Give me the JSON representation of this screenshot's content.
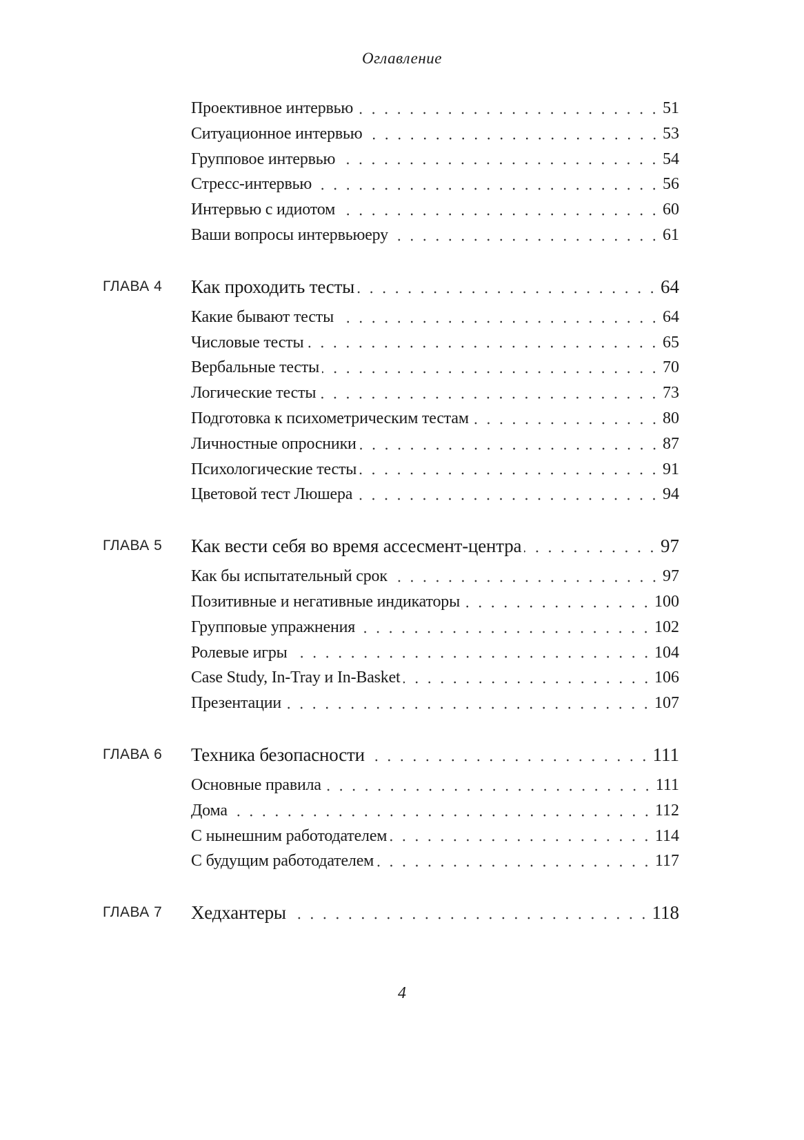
{
  "header": {
    "title": "Оглавление"
  },
  "sections": [
    {
      "chapter_label": "",
      "chapter_title": "",
      "chapter_page": "",
      "items": [
        {
          "title": "Проективное интервью",
          "page": "51"
        },
        {
          "title": "Ситуационное интервью",
          "page": "53"
        },
        {
          "title": "Групповое интервью",
          "page": "54"
        },
        {
          "title": "Стресс-интервью",
          "page": "56"
        },
        {
          "title": "Интервью с идиотом",
          "page": "60"
        },
        {
          "title": "Ваши вопросы интервьюеру",
          "page": "61"
        }
      ]
    },
    {
      "chapter_label": "ГЛАВА 4",
      "chapter_title": "Как проходить тесты",
      "chapter_page": "64",
      "items": [
        {
          "title": "Какие бывают тесты",
          "page": "64"
        },
        {
          "title": "Числовые тесты",
          "page": "65"
        },
        {
          "title": "Вербальные тесты",
          "page": "70"
        },
        {
          "title": "Логические тесты",
          "page": "73"
        },
        {
          "title": "Подготовка к психометрическим тестам",
          "page": "80"
        },
        {
          "title": "Личностные опросники",
          "page": "87"
        },
        {
          "title": "Психологические тесты",
          "page": "91"
        },
        {
          "title": "Цветовой тест Люшера",
          "page": "94"
        }
      ]
    },
    {
      "chapter_label": "ГЛАВА 5",
      "chapter_title": "Как вести себя во время ассесмент-центра",
      "chapter_page": "97",
      "items": [
        {
          "title": "Как бы испытательный срок",
          "page": "97"
        },
        {
          "title": "Позитивные и негативные индикаторы",
          "page": "100"
        },
        {
          "title": "Групповые упражнения",
          "page": "102"
        },
        {
          "title": "Ролевые игры",
          "page": "104"
        },
        {
          "title": "Case Study, In-Tray и In-Basket",
          "page": "106"
        },
        {
          "title": "Презентации",
          "page": "107"
        }
      ]
    },
    {
      "chapter_label": "ГЛАВА 6",
      "chapter_title": "Техника безопасности",
      "chapter_page": "111",
      "items": [
        {
          "title": "Основные правила",
          "page": "111"
        },
        {
          "title": "Дома",
          "page": "112"
        },
        {
          "title": "С нынешним работодателем",
          "page": "114"
        },
        {
          "title": "С будущим работодателем",
          "page": "117"
        }
      ]
    },
    {
      "chapter_label": "ГЛАВА 7",
      "chapter_title": "Хедхантеры",
      "chapter_page": "118",
      "items": []
    }
  ],
  "footer": {
    "page_number": "4"
  }
}
